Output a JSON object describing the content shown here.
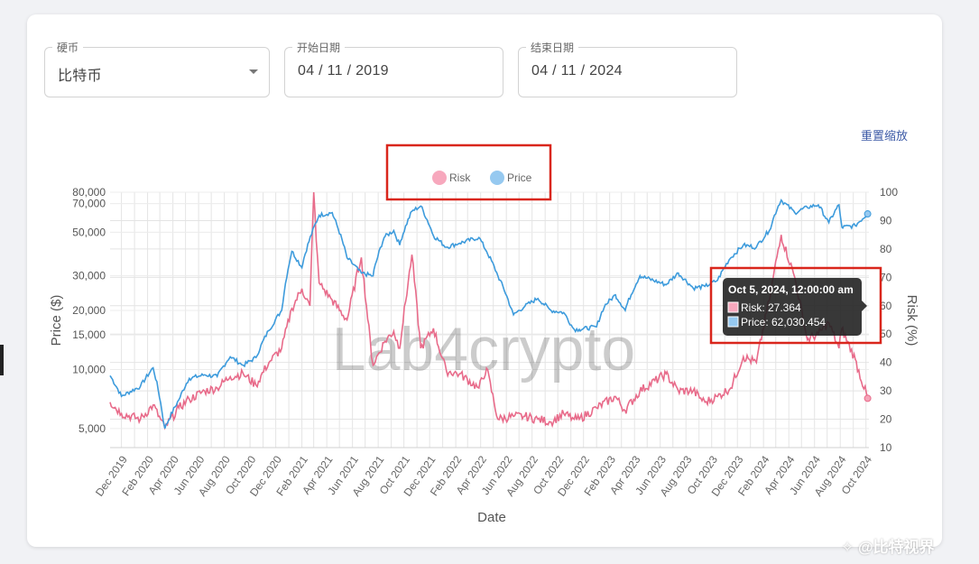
{
  "filters": {
    "coin": {
      "label": "硬币",
      "value": "比特币"
    },
    "start_date": {
      "label": "开始日期",
      "value": "04 / 11 / 2019"
    },
    "end_date": {
      "label": "结束日期",
      "value": "04 / 11 / 2024"
    }
  },
  "reset_zoom_label": "重置缩放",
  "watermark": "Lab4crypto",
  "corner_watermark": "✧ @比特视界",
  "colors": {
    "risk": "#e86b8a",
    "price": "#3d9bdc",
    "risk_legend": "#f7a8bd",
    "price_legend": "#96c9f0",
    "highlight": "#d9261c"
  },
  "tooltip": {
    "title": "Oct 5, 2024, 12:00:00 am",
    "risk_line": "Risk: 27.364",
    "price_line": "Price: 62,030.454"
  },
  "chart_data": {
    "type": "line",
    "title": "",
    "xlabel": "Date",
    "ylabel_left": "Price ($)",
    "ylabel_right": "Risk (%)",
    "y_left_scale": "log",
    "y_left_range": [
      4000,
      80000
    ],
    "y_left_ticks": [
      "80,000",
      "70,000",
      "50,000",
      "30,000",
      "20,000",
      "15,000",
      "10,000",
      "5,000"
    ],
    "y_left_tick_values": [
      80000,
      70000,
      50000,
      30000,
      20000,
      15000,
      10000,
      5000
    ],
    "y_right_range": [
      10,
      100
    ],
    "y_right_ticks": [
      "100",
      "90",
      "80",
      "70",
      "60",
      "50",
      "40",
      "30",
      "20",
      "10"
    ],
    "x_ticks": [
      "Dec 2019",
      "Feb 2020",
      "Apr 2020",
      "Jun 2020",
      "Aug 2020",
      "Oct 2020",
      "Dec 2020",
      "Feb 2021",
      "Apr 2021",
      "Jun 2021",
      "Aug 2021",
      "Oct 2021",
      "Dec 2021",
      "Feb 2022",
      "Apr 2022",
      "Jun 2022",
      "Aug 2022",
      "Oct 2022",
      "Dec 2022",
      "Feb 2023",
      "Apr 2023",
      "Jun 2023",
      "Aug 2023",
      "Oct 2023",
      "Dec 2023",
      "Feb 2024",
      "Apr 2024",
      "Jun 2024",
      "Aug 2024",
      "Oct 2024"
    ],
    "legend": {
      "position": "top-center",
      "items": [
        "Risk",
        "Price"
      ]
    },
    "grid": true,
    "series": [
      {
        "name": "Price",
        "axis": "left",
        "dates": [
          "2019-11-04",
          "2019-12-01",
          "2020-01-15",
          "2020-02-14",
          "2020-03-13",
          "2020-04-15",
          "2020-05-10",
          "2020-06-15",
          "2020-07-15",
          "2020-08-15",
          "2020-09-15",
          "2020-10-15",
          "2020-11-15",
          "2020-12-15",
          "2021-01-08",
          "2021-02-01",
          "2021-03-14",
          "2021-04-14",
          "2021-05-19",
          "2021-06-22",
          "2021-07-20",
          "2021-08-15",
          "2021-09-07",
          "2021-09-21",
          "2021-10-20",
          "2021-11-10",
          "2021-12-10",
          "2022-01-10",
          "2022-02-10",
          "2022-03-28",
          "2022-04-15",
          "2022-05-12",
          "2022-06-18",
          "2022-07-15",
          "2022-08-15",
          "2022-09-15",
          "2022-10-15",
          "2022-11-09",
          "2022-11-21",
          "2023-01-01",
          "2023-01-20",
          "2023-02-15",
          "2023-03-10",
          "2023-04-14",
          "2023-06-15",
          "2023-07-14",
          "2023-08-18",
          "2023-09-15",
          "2023-10-15",
          "2023-11-15",
          "2023-12-15",
          "2024-01-15",
          "2024-02-15",
          "2024-03-14",
          "2024-04-15",
          "2024-05-15",
          "2024-06-10",
          "2024-07-05",
          "2024-07-29",
          "2024-08-05",
          "2024-09-06",
          "2024-10-05"
        ],
        "values": [
          9300,
          7300,
          8200,
          10200,
          5000,
          7000,
          9000,
          9400,
          9200,
          11600,
          10500,
          11500,
          15800,
          20000,
          40000,
          33000,
          61000,
          63000,
          37000,
          31000,
          30000,
          47000,
          51000,
          43000,
          64000,
          68000,
          48000,
          42000,
          44000,
          47000,
          40000,
          30000,
          19000,
          21000,
          23000,
          20000,
          19500,
          16000,
          16000,
          16500,
          21000,
          24000,
          20000,
          30000,
          27000,
          31000,
          26000,
          26500,
          28500,
          37000,
          43000,
          42000,
          51000,
          73000,
          63000,
          67000,
          69000,
          56000,
          69000,
          53000,
          54000,
          62030
        ]
      },
      {
        "name": "Risk",
        "axis": "right",
        "dates": [
          "2019-11-04",
          "2019-12-01",
          "2020-01-15",
          "2020-02-14",
          "2020-03-13",
          "2020-04-15",
          "2020-05-10",
          "2020-06-15",
          "2020-07-15",
          "2020-08-15",
          "2020-09-15",
          "2020-10-15",
          "2020-11-15",
          "2020-12-15",
          "2021-01-08",
          "2021-02-01",
          "2021-02-20",
          "2021-03-01",
          "2021-03-14",
          "2021-04-14",
          "2021-05-19",
          "2021-06-22",
          "2021-07-20",
          "2021-08-15",
          "2021-09-07",
          "2021-09-21",
          "2021-10-20",
          "2021-11-10",
          "2021-12-10",
          "2022-01-10",
          "2022-02-10",
          "2022-03-28",
          "2022-04-15",
          "2022-05-12",
          "2022-06-18",
          "2022-07-15",
          "2022-08-15",
          "2022-09-15",
          "2022-10-15",
          "2022-11-09",
          "2022-11-21",
          "2023-01-01",
          "2023-02-15",
          "2023-03-10",
          "2023-04-14",
          "2023-06-15",
          "2023-07-14",
          "2023-08-18",
          "2023-09-15",
          "2023-10-15",
          "2023-11-15",
          "2023-12-15",
          "2024-01-15",
          "2024-02-15",
          "2024-03-14",
          "2024-04-15",
          "2024-05-15",
          "2024-06-10",
          "2024-07-05",
          "2024-07-29",
          "2024-08-05",
          "2024-09-06",
          "2024-10-05"
        ],
        "values": [
          26,
          22,
          20,
          25,
          17,
          24,
          27,
          30,
          31,
          35,
          36,
          32,
          40,
          45,
          59,
          66,
          60,
          100,
          68,
          62,
          55,
          77,
          39,
          47,
          51,
          45,
          78,
          45,
          52,
          37,
          36,
          31,
          38,
          20,
          21,
          21,
          20,
          19,
          22,
          20,
          20,
          24,
          28,
          23,
          30,
          36,
          30,
          30,
          26,
          28,
          31,
          42,
          40,
          62,
          85,
          70,
          48,
          50,
          54,
          45,
          52,
          41,
          27.364
        ]
      }
    ]
  }
}
